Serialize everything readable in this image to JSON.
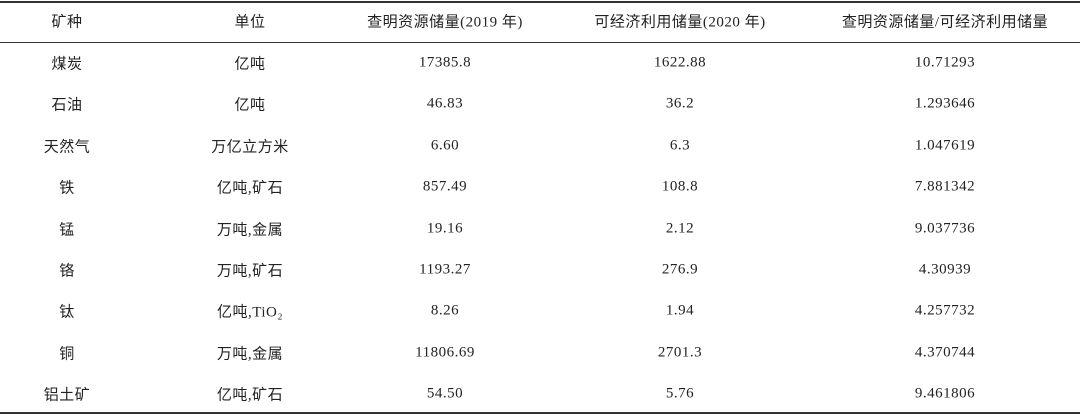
{
  "table": {
    "header": [
      "矿种",
      "单位",
      "查明资源储量(2019 年)",
      "可经济利用储量(2020 年)",
      "查明资源储量/可经济利用储量"
    ],
    "rows": [
      [
        "煤炭",
        "亿吨",
        "17385.8",
        "1622.88",
        "10.71293"
      ],
      [
        "石油",
        "亿吨",
        "46.83",
        "36.2",
        "1.293646"
      ],
      [
        "天然气",
        "万亿立方米",
        "6.60",
        "6.3",
        "1.047619"
      ],
      [
        "铁",
        "亿吨,矿石",
        "857.49",
        "108.8",
        "7.881342"
      ],
      [
        "锰",
        "万吨,金属",
        "19.16",
        "2.12",
        "9.037736"
      ],
      [
        "铬",
        "万吨,矿石",
        "1193.27",
        "276.9",
        "4.30939"
      ],
      [
        "钛",
        "亿吨,TiO₂",
        "8.26",
        "1.94",
        "4.257732"
      ],
      [
        "铜",
        "万吨,金属",
        "11806.69",
        "2701.3",
        "4.370744"
      ],
      [
        "铝土矿",
        "亿吨,矿石",
        "54.50",
        "5.76",
        "9.461806"
      ]
    ]
  }
}
